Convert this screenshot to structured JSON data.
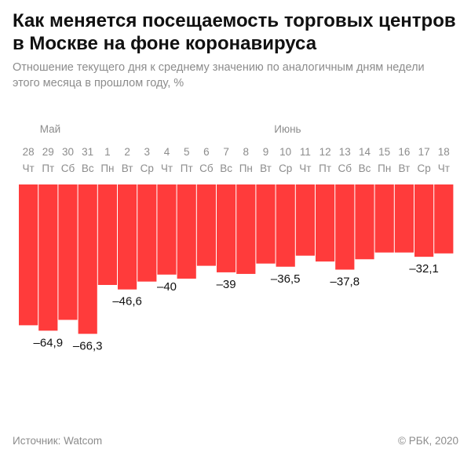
{
  "header": {
    "title": "Как меняется посещаемость торговых центров в Москве на фоне коронавируса",
    "subtitle": "Отношение текущего дня к среднему значению по аналогичным дням недели этого месяца в прошлом году, %"
  },
  "footer": {
    "source": "Источник: Watcom",
    "copyright": "© РБК, 2020"
  },
  "colors": {
    "bar": "#ff3b3b",
    "text": "#111111",
    "muted": "#8c8c8c"
  },
  "chart_data": {
    "type": "bar",
    "orientation": "downward-from-zero",
    "months": [
      {
        "label": "Май",
        "start_index": 0
      },
      {
        "label": "Июнь",
        "start_index": 12
      }
    ],
    "categories": [
      "28",
      "29",
      "30",
      "31",
      "1",
      "2",
      "3",
      "4",
      "5",
      "6",
      "7",
      "8",
      "9",
      "10",
      "11",
      "12",
      "13",
      "14",
      "15",
      "16",
      "17",
      "18"
    ],
    "weekdays": [
      "Чт",
      "Пт",
      "Сб",
      "Вс",
      "Пн",
      "Вт",
      "Ср",
      "Чт",
      "Пт",
      "Сб",
      "Вс",
      "Пн",
      "Вт",
      "Ср",
      "Чт",
      "Пт",
      "Сб",
      "Вс",
      "Пн",
      "Вт",
      "Ср",
      "Чт"
    ],
    "values": [
      -62.5,
      -64.9,
      -60.1,
      -66.3,
      -44.6,
      -46.6,
      -43.1,
      -40,
      -41.8,
      -36.1,
      -39,
      -39.7,
      -35.1,
      -36.5,
      -31.6,
      -34.2,
      -37.8,
      -33.2,
      -30.2,
      -30.2,
      -32.1,
      -30.6
    ],
    "labels": [
      {
        "index": 1,
        "text": "–64,9"
      },
      {
        "index": 3,
        "text": "–66,3"
      },
      {
        "index": 5,
        "text": "–46,6"
      },
      {
        "index": 7,
        "text": "–40"
      },
      {
        "index": 10,
        "text": "–39"
      },
      {
        "index": 13,
        "text": "–36,5"
      },
      {
        "index": 16,
        "text": "–37,8"
      },
      {
        "index": 20,
        "text": "–32,1"
      }
    ],
    "ylim": [
      -70,
      0
    ],
    "xlabel": "",
    "ylabel": ""
  }
}
